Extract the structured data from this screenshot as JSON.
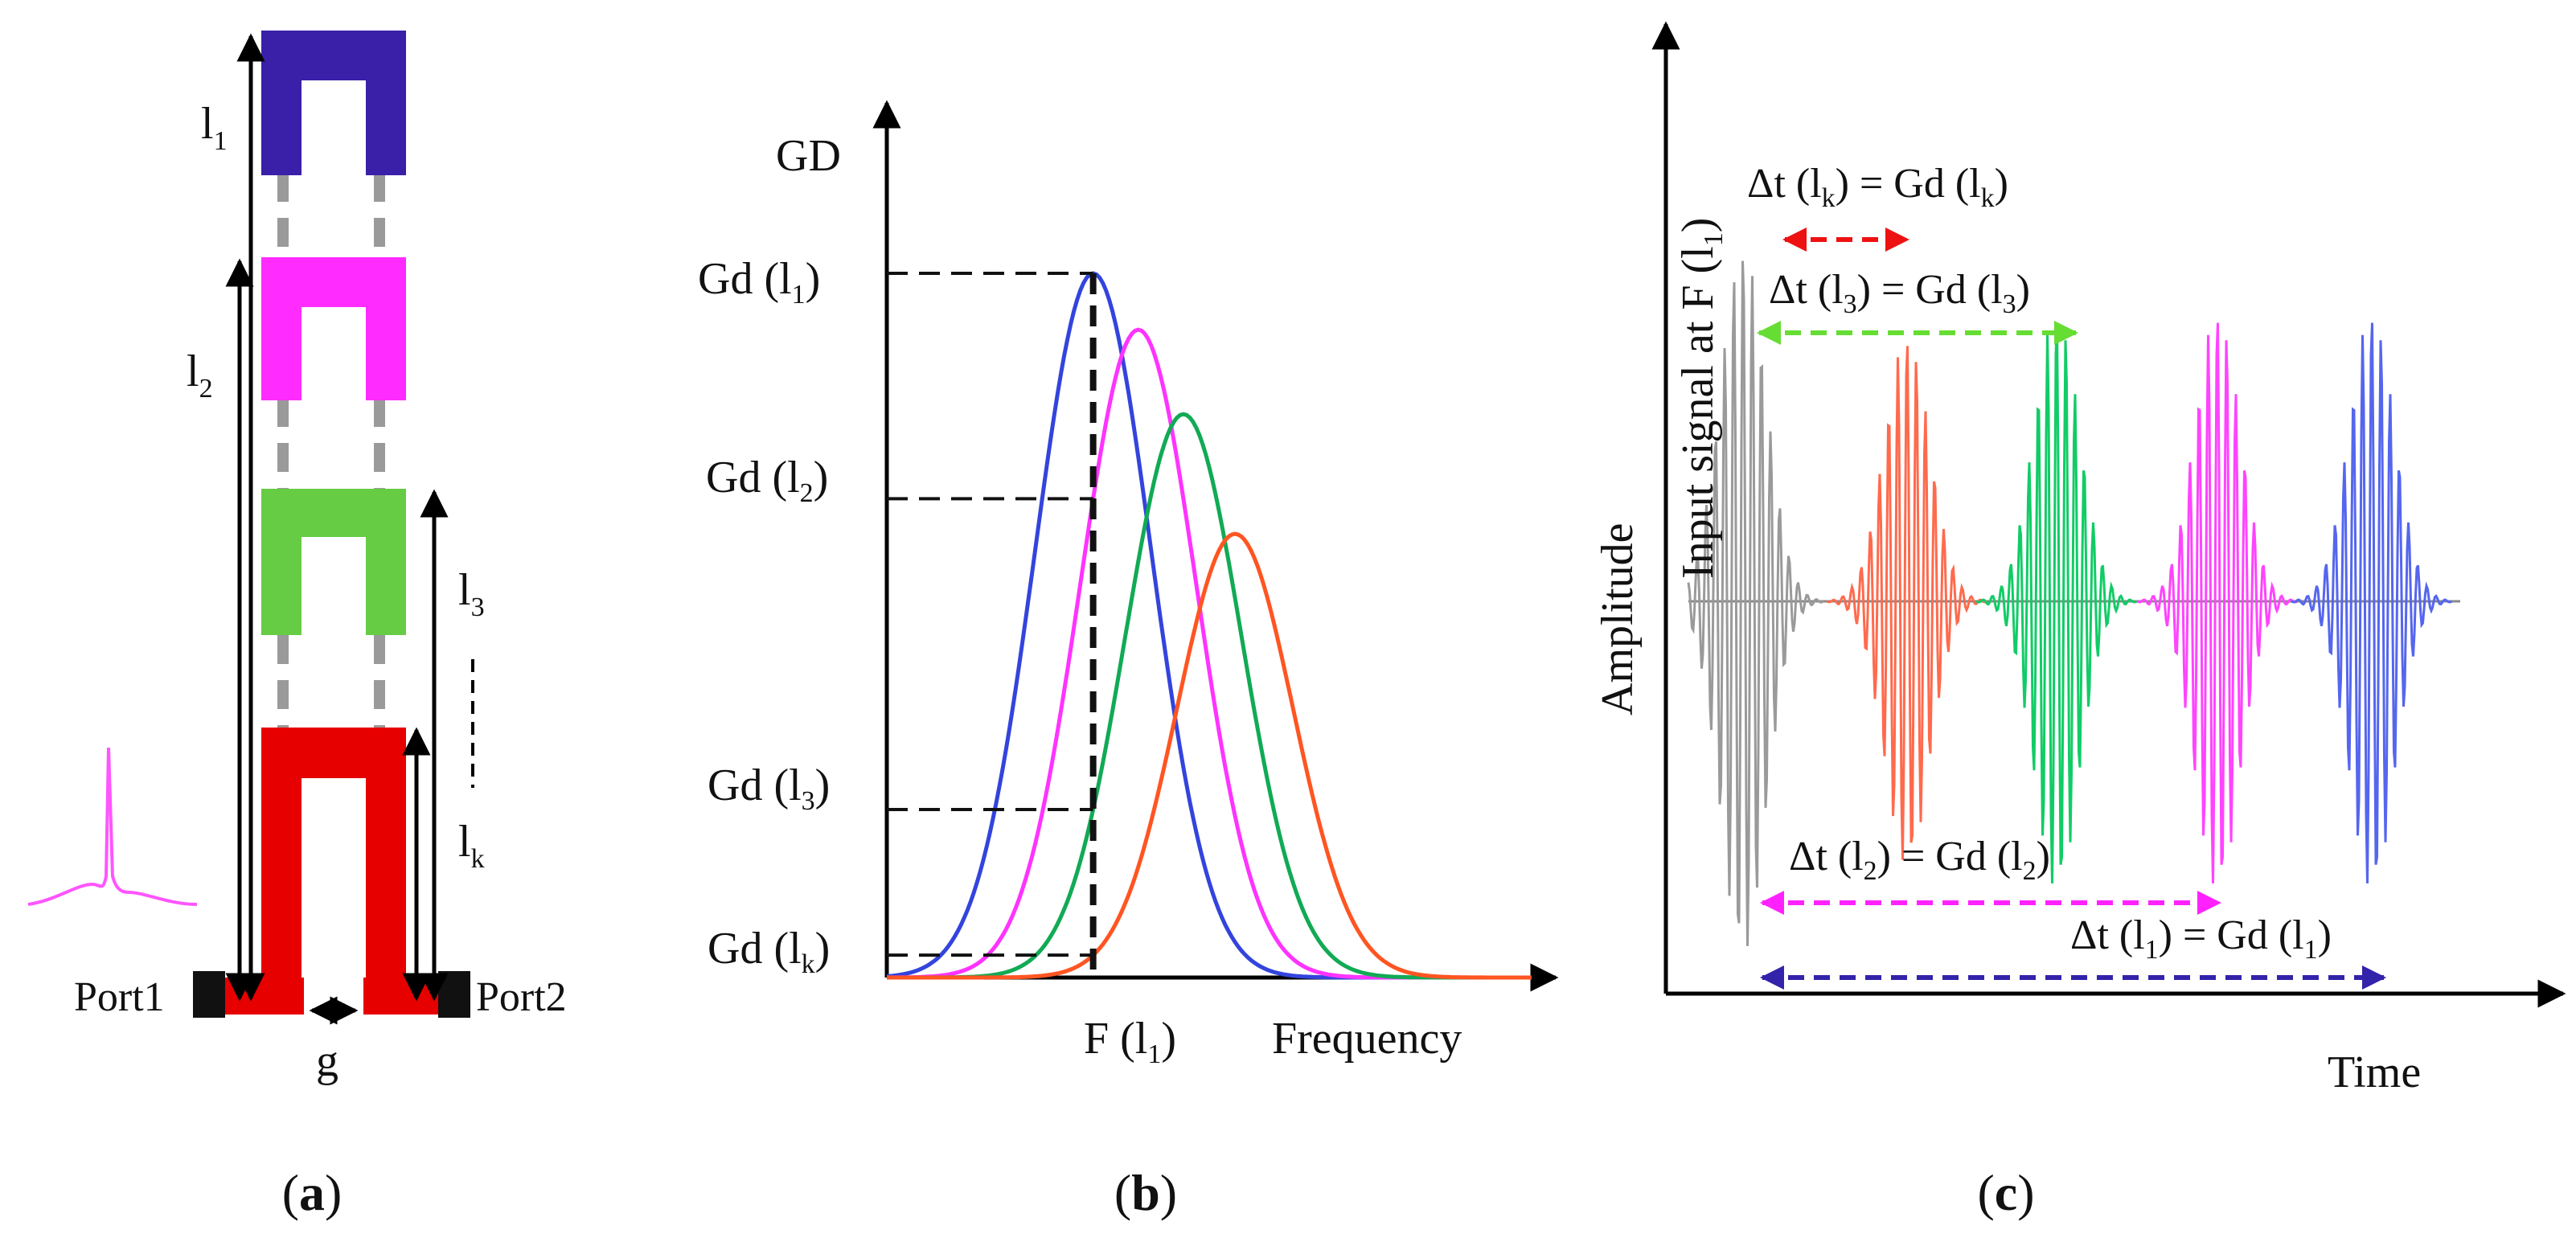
{
  "colors": {
    "blue": "#3a1fa8",
    "magenta": "#ff2bff",
    "green": "#55cc33",
    "red": "#e60000",
    "curve_blue": "#3344dd",
    "curve_magenta": "#ff33ff",
    "curve_green": "#11aa55",
    "curve_red": "#ff5522",
    "wave_gray": "#9a9a9a",
    "wave_red": "#ff6a4d",
    "wave_green": "#11cc66",
    "wave_magenta": "#ff44ff",
    "wave_blue": "#5566ee",
    "arrow_red": "#ee1111",
    "arrow_green": "#66dd33",
    "arrow_magenta": "#ff22ff",
    "arrow_blue": "#3322aa"
  },
  "panel_a": {
    "labels": {
      "l1": "l",
      "l1_sub": "1",
      "l2": "l",
      "l2_sub": "2",
      "l3": "l",
      "l3_sub": "3",
      "lk": "l",
      "lk_sub": "k",
      "port1": "Port1",
      "port2": "Port2",
      "gap": "g"
    },
    "caption_open": "(",
    "caption_letter": "a",
    "caption_close": ")"
  },
  "panel_b": {
    "y_axis_label": "GD",
    "x_axis_label": "Frequency",
    "x_tick": "F (l",
    "x_tick_sub": "1",
    "x_tick_close": ")",
    "gd_ticks": [
      {
        "text": "Gd (l",
        "sub": "1",
        "close": ")"
      },
      {
        "text": "Gd (l",
        "sub": "2",
        "close": ")"
      },
      {
        "text": "Gd (l",
        "sub": "3",
        "close": ")"
      },
      {
        "text": "Gd (l",
        "sub": "k",
        "close": ")"
      }
    ],
    "caption_open": "(",
    "caption_letter": "b",
    "caption_close": ")"
  },
  "chart_data": {
    "type": "line",
    "title": "",
    "xlabel": "Frequency",
    "ylabel": "GD",
    "series": [
      {
        "name": "l1",
        "color": "#3344dd",
        "center": 0.32,
        "peak": 1.0,
        "width": 0.09
      },
      {
        "name": "l2",
        "color": "#ff33ff",
        "center": 0.39,
        "peak": 0.92,
        "width": 0.09
      },
      {
        "name": "l3",
        "color": "#11aa55",
        "center": 0.46,
        "peak": 0.8,
        "width": 0.09
      },
      {
        "name": "lk",
        "color": "#ff5522",
        "center": 0.54,
        "peak": 0.63,
        "width": 0.09
      }
    ],
    "xlim": [
      0,
      1
    ],
    "ylim": [
      0,
      1.0
    ]
  },
  "panel_c": {
    "y_axis_label": "Amplitude",
    "x_axis_label": "Time",
    "input_label": "Input signal at F (l",
    "input_sub": "1",
    "input_close": ")",
    "annotations": [
      {
        "text": "Δt (l",
        "sub": "k",
        "mid": ") = Gd (l",
        "sub2": "k",
        "close": ")"
      },
      {
        "text": "Δt (l",
        "sub": "3",
        "mid": ") = Gd (l",
        "sub2": "3",
        "close": ")"
      },
      {
        "text": "Δt (l",
        "sub": "2",
        "mid": ") = Gd (l",
        "sub2": "2",
        "close": ")"
      },
      {
        "text": "Δt (l",
        "sub": "1",
        "mid": ") = Gd (l",
        "sub2": "1",
        "close": ")"
      }
    ],
    "caption_open": "(",
    "caption_letter": "c",
    "caption_close": ")"
  }
}
